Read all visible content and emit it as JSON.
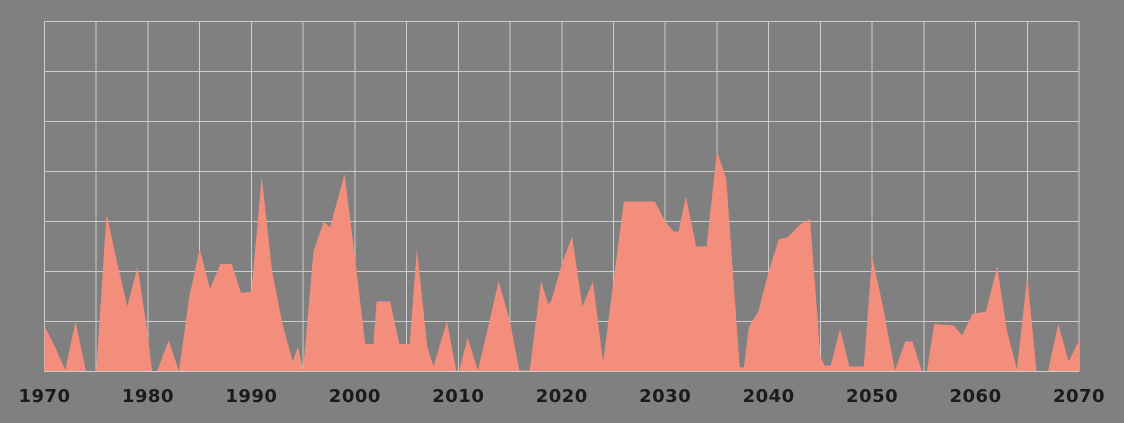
{
  "canvas": {
    "background_color": "#808080"
  },
  "chart_data": {
    "type": "area",
    "title": "",
    "xlabel": "",
    "ylabel": "",
    "xlim": [
      1970,
      2070
    ],
    "ylim": [
      0,
      7
    ],
    "grid": "on",
    "legend": "none",
    "x_gridline_interval_years": 5,
    "y_gridline_interval_units": 1,
    "x_tick_labels": [
      "1970",
      "1980",
      "1990",
      "2000",
      "2010",
      "2020",
      "2030",
      "2040",
      "2050",
      "2060",
      "2070"
    ],
    "y_tick_labels": [],
    "area_color": "#F48E7C",
    "gridline_color": "#CCCCCC",
    "plot_background_color": "#808080",
    "tick_label_color": "#1B1B1B",
    "series": [
      {
        "name": "",
        "points": [
          [
            1970.0,
            0.9
          ],
          [
            1971.0,
            0.5
          ],
          [
            1972.0,
            0.03
          ],
          [
            1973.0,
            1.0
          ],
          [
            1974.0,
            0.01
          ],
          [
            1975.0,
            0.01
          ],
          [
            1976.0,
            3.15
          ],
          [
            1977.0,
            2.2
          ],
          [
            1978.0,
            1.3
          ],
          [
            1979.0,
            2.1
          ],
          [
            1980.0,
            0.7
          ],
          [
            1980.4,
            0.01
          ],
          [
            1980.9,
            0.01
          ],
          [
            1982.0,
            0.62
          ],
          [
            1983.0,
            0.01
          ],
          [
            1984.0,
            1.5
          ],
          [
            1985.0,
            2.45
          ],
          [
            1986.0,
            1.65
          ],
          [
            1987.0,
            2.15
          ],
          [
            1988.1,
            2.15
          ],
          [
            1989.0,
            1.57
          ],
          [
            1990.0,
            1.6
          ],
          [
            1991.0,
            3.9
          ],
          [
            1992.0,
            2.0
          ],
          [
            1993.0,
            0.95
          ],
          [
            1994.0,
            0.2
          ],
          [
            1994.5,
            0.5
          ],
          [
            1995.0,
            0.03
          ],
          [
            1996.0,
            2.4
          ],
          [
            1997.0,
            3.0
          ],
          [
            1997.6,
            2.88
          ],
          [
            1999.0,
            3.95
          ],
          [
            2000.0,
            2.3
          ],
          [
            2001.0,
            0.55
          ],
          [
            2001.8,
            0.55
          ],
          [
            2002.1,
            1.4
          ],
          [
            2003.4,
            1.4
          ],
          [
            2004.3,
            0.55
          ],
          [
            2005.3,
            0.55
          ],
          [
            2006.0,
            2.45
          ],
          [
            2007.0,
            0.5
          ],
          [
            2007.6,
            0.1
          ],
          [
            2008.9,
            1.0
          ],
          [
            2009.8,
            0.02
          ],
          [
            2010.1,
            0.02
          ],
          [
            2010.9,
            0.68
          ],
          [
            2011.9,
            0.02
          ],
          [
            2013.0,
            1.0
          ],
          [
            2013.9,
            1.8
          ],
          [
            2015.0,
            1.0
          ],
          [
            2015.9,
            0.02
          ],
          [
            2016.9,
            0.02
          ],
          [
            2018.0,
            1.8
          ],
          [
            2018.7,
            1.35
          ],
          [
            2019.0,
            1.42
          ],
          [
            2020.0,
            2.15
          ],
          [
            2021.0,
            2.7
          ],
          [
            2022.0,
            1.3
          ],
          [
            2023.0,
            1.8
          ],
          [
            2024.0,
            0.2
          ],
          [
            2025.0,
            1.8
          ],
          [
            2026.0,
            3.4
          ],
          [
            2029.0,
            3.4
          ],
          [
            2030.0,
            3.0
          ],
          [
            2030.8,
            2.8
          ],
          [
            2031.3,
            2.8
          ],
          [
            2032.0,
            3.5
          ],
          [
            2033.0,
            2.5
          ],
          [
            2034.0,
            2.5
          ],
          [
            2035.0,
            4.4
          ],
          [
            2035.9,
            3.85
          ],
          [
            2037.2,
            0.08
          ],
          [
            2037.6,
            0.08
          ],
          [
            2038.1,
            0.9
          ],
          [
            2039.0,
            1.2
          ],
          [
            2040.0,
            2.0
          ],
          [
            2041.0,
            2.65
          ],
          [
            2041.8,
            2.68
          ],
          [
            2043.1,
            2.95
          ],
          [
            2044.0,
            3.05
          ],
          [
            2045.0,
            0.3
          ],
          [
            2045.4,
            0.12
          ],
          [
            2046.0,
            0.12
          ],
          [
            2046.9,
            0.85
          ],
          [
            2047.8,
            0.1
          ],
          [
            2049.2,
            0.1
          ],
          [
            2050.0,
            2.3
          ],
          [
            2051.0,
            1.35
          ],
          [
            2052.2,
            0.02
          ],
          [
            2053.2,
            0.6
          ],
          [
            2053.9,
            0.6
          ],
          [
            2054.8,
            0.01
          ],
          [
            2055.3,
            0.01
          ],
          [
            2056.0,
            0.95
          ],
          [
            2057.9,
            0.92
          ],
          [
            2058.7,
            0.72
          ],
          [
            2059.7,
            1.15
          ],
          [
            2061.0,
            1.2
          ],
          [
            2062.1,
            2.1
          ],
          [
            2063.0,
            0.85
          ],
          [
            2064.0,
            0.04
          ],
          [
            2065.0,
            1.9
          ],
          [
            2065.9,
            0.0
          ],
          [
            2067.0,
            0.0
          ],
          [
            2068.0,
            0.95
          ],
          [
            2069.0,
            0.2
          ],
          [
            2070.0,
            0.62
          ]
        ]
      }
    ]
  }
}
